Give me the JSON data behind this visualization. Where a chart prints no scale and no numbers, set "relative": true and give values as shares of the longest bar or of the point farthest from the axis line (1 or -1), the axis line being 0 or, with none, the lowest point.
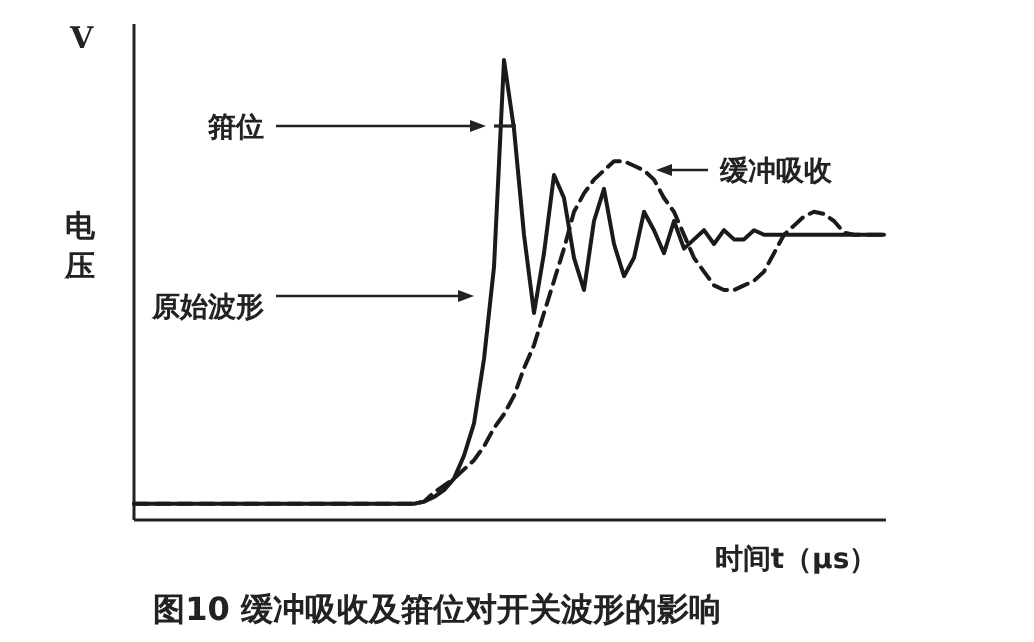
{
  "chart_data": {
    "type": "line",
    "relative": true,
    "title": "图10   缓冲吸收及箝位对开关波形的影响",
    "ylabel": "电压",
    "xlabel": "时间t（μs）",
    "categories": [
      null,
      null,
      null,
      null,
      null,
      null,
      null,
      null,
      null,
      null,
      null,
      null,
      null,
      null,
      null,
      null,
      null,
      null,
      null,
      null,
      null,
      null,
      null,
      null,
      null,
      null,
      null,
      null,
      null,
      null,
      null,
      null,
      null,
      null,
      null,
      null,
      null,
      null,
      null,
      null,
      null,
      null,
      null,
      null,
      null,
      null,
      null,
      null,
      null,
      null,
      null,
      null,
      null,
      null,
      null,
      null,
      null,
      null,
      null,
      null,
      null,
      null,
      null,
      null,
      null,
      null,
      null,
      null,
      null,
      null,
      null,
      null,
      null,
      null,
      null,
      null
    ],
    "series": [
      {
        "color": "#1a1a1a",
        "line_style": "solid",
        "values": [
          0.035,
          0.035,
          0.035,
          0.035,
          0.035,
          0.035,
          0.035,
          0.035,
          0.035,
          0.035,
          0.035,
          0.035,
          0.035,
          0.035,
          0.035,
          0.035,
          0.035,
          0.035,
          0.035,
          0.035,
          0.035,
          0.035,
          0.035,
          0.035,
          0.035,
          0.035,
          0.035,
          0.035,
          0.035,
          0.04,
          0.05,
          0.065,
          0.09,
          0.14,
          0.21,
          0.35,
          0.55,
          1,
          0.85,
          0.62,
          0.45,
          0.58,
          0.75,
          0.7,
          0.57,
          0.5,
          0.65,
          0.72,
          0.6,
          0.53,
          0.57,
          0.67,
          0.63,
          0.58,
          0.65,
          0.59,
          0.61,
          0.63,
          0.6,
          0.63,
          0.61,
          0.61,
          0.63,
          0.62,
          0.62,
          0.62,
          0.62,
          0.62,
          0.62,
          0.62,
          0.62,
          0.62,
          0.62,
          0.62,
          0.62,
          0.62
        ]
      },
      {
        "color": "#1a1a1a",
        "line_style": "dashed",
        "values": [
          0.035,
          0.035,
          0.035,
          0.035,
          0.035,
          0.035,
          0.035,
          0.035,
          0.035,
          0.035,
          0.035,
          0.035,
          0.035,
          0.035,
          0.035,
          0.035,
          0.035,
          0.035,
          0.035,
          0.035,
          0.035,
          0.035,
          0.035,
          0.035,
          0.035,
          0.035,
          0.035,
          0.035,
          0.035,
          0.04,
          0.06,
          0.075,
          0.09,
          0.11,
          0.13,
          0.16,
          0.2,
          0.23,
          0.27,
          0.33,
          0.38,
          0.45,
          0.52,
          0.59,
          0.67,
          0.71,
          0.74,
          0.76,
          0.78,
          0.78,
          0.77,
          0.76,
          0.74,
          0.7,
          0.67,
          0.62,
          0.57,
          0.54,
          0.51,
          0.5,
          0.5,
          0.51,
          0.52,
          0.54,
          0.58,
          0.62,
          0.64,
          0.66,
          0.67,
          0.665,
          0.65,
          0.625,
          0.62,
          0.62,
          0.62,
          0.62
        ]
      }
    ],
    "annotations": [
      "V",
      "箝位",
      "原始波形",
      "缓冲吸收"
    ]
  }
}
